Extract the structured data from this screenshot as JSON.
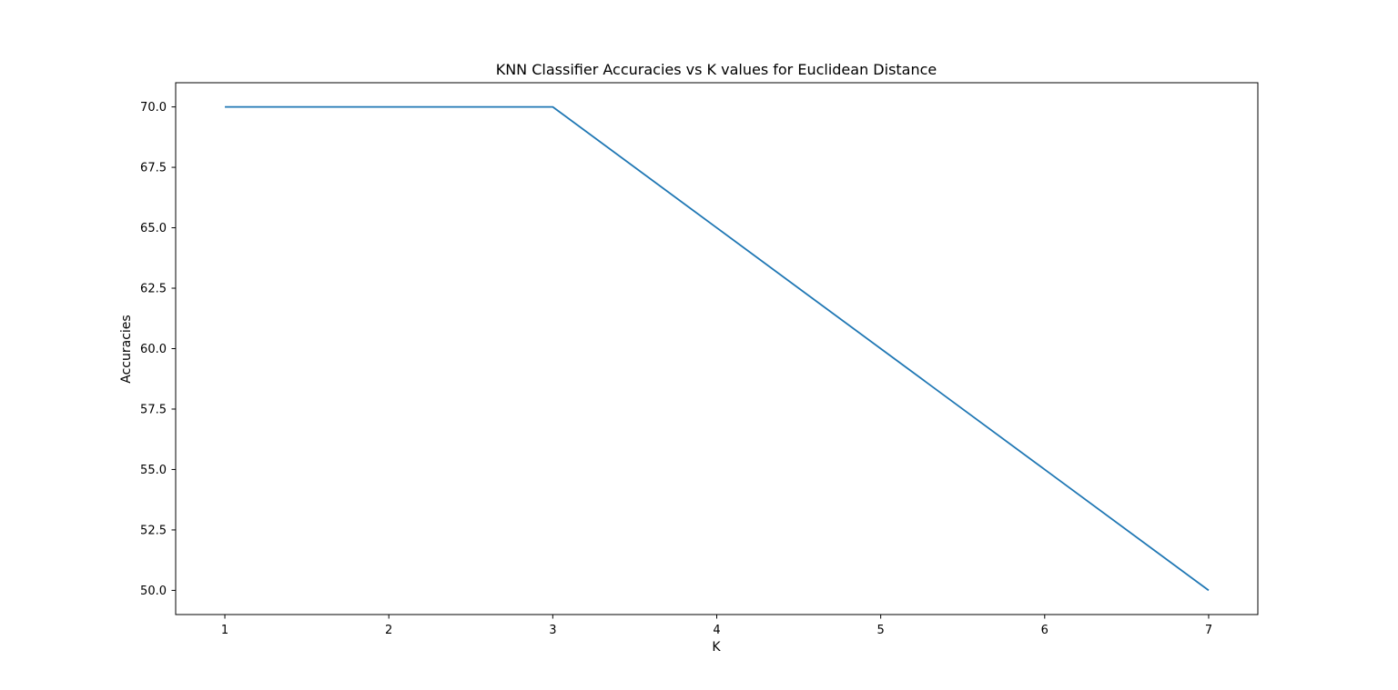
{
  "chart_data": {
    "type": "line",
    "title": "KNN Classifier Accuracies vs K values for Euclidean Distance",
    "xlabel": "K",
    "ylabel": "Accuracies",
    "x": [
      1,
      2,
      3,
      4,
      5,
      6,
      7
    ],
    "series": [
      {
        "values": [
          70.0,
          70.0,
          70.0,
          65.0,
          60.0,
          55.0,
          50.0
        ]
      }
    ],
    "xlim": [
      0.7,
      7.3
    ],
    "ylim": [
      49.0,
      71.0
    ],
    "xticks": [
      1,
      2,
      3,
      4,
      5,
      6,
      7
    ],
    "xtick_labels": [
      "1",
      "2",
      "3",
      "4",
      "5",
      "6",
      "7"
    ],
    "yticks": [
      50.0,
      52.5,
      55.0,
      57.5,
      60.0,
      62.5,
      65.0,
      67.5,
      70.0
    ],
    "ytick_labels": [
      "50.0",
      "52.5",
      "55.0",
      "57.5",
      "60.0",
      "62.5",
      "65.0",
      "67.5",
      "70.0"
    ],
    "grid": false,
    "line_color": "#1f77b4"
  }
}
